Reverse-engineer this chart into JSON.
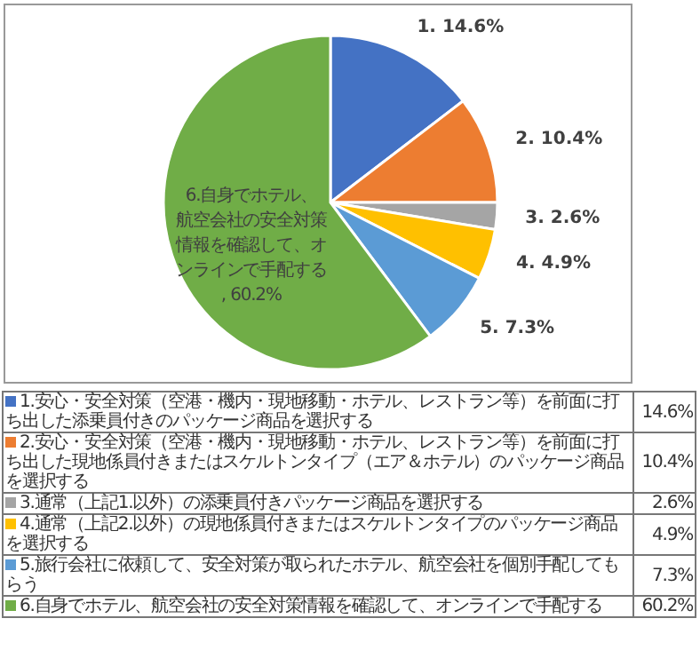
{
  "chart_data": {
    "type": "pie",
    "categories": [
      "1.安心・安全対策（空港・機内・現地移動・ホテル、レストラン等）を前面に打ち出した添乗員付きのパッケージ商品を選択する",
      "2.安心・安全対策（空港・機内・現地移動・ホテル、レストラン等）を前面に打ち出した現地係員付きまたはスケルトンタイプ（エア＆ホテル）のパッケージ商品を選択する",
      "3.通常（上記1.以外）の添乗員付きパッケージ商品を選択する",
      "4.通常（上記2.以外）の現地係員付きまたはスケルトンタイプのパッケージ商品を選択する",
      "5.旅行会社に依頼して、安全対策が取られたホテル、航空会社を個別手配してもらう",
      "6.自身でホテル、航空会社の安全対策情報を確認して、オンラインで手配する"
    ],
    "values": [
      14.6,
      10.4,
      2.6,
      4.9,
      7.3,
      60.2
    ],
    "colors": [
      "#4472c4",
      "#ed7d31",
      "#a5a5a5",
      "#ffc000",
      "#5b9bd5",
      "#70ad47"
    ],
    "value_labels": [
      "1. 14.6%",
      "2. 10.4%",
      "3. 2.6%",
      "4. 4.9%",
      "5. 7.3%",
      "6.自身でホテル、航空会社の安全対策情報を確認して、オンラインで手配する, 60.2%"
    ],
    "annotations": [
      "14.6%",
      "10.4%",
      "2.6%",
      "4.9%",
      "7.3%",
      "60.2%"
    ],
    "legend": "bottom"
  }
}
